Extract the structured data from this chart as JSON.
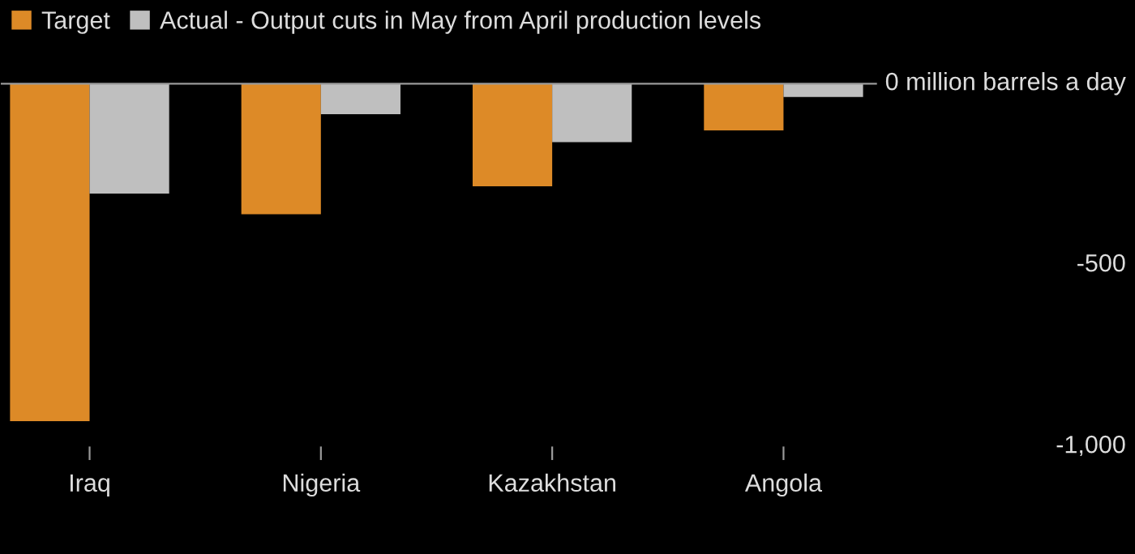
{
  "chart_data": {
    "type": "bar",
    "categories": [
      "Iraq",
      "Nigeria",
      "Kazakhstan",
      "Angola"
    ],
    "series": [
      {
        "name": "Target",
        "color": "#dd8a27",
        "values": [
          -930,
          -360,
          -283,
          -129
        ]
      },
      {
        "name": "Actual - Output cuts in May from April production levels",
        "color": "#bfbfbf",
        "values": [
          -303,
          -84,
          -161,
          -37
        ]
      }
    ],
    "ylim": [
      -1000,
      0
    ],
    "yticks": [
      {
        "value": 0,
        "label": "0 million barrels a day"
      },
      {
        "value": -500,
        "label": "-500"
      },
      {
        "value": -1000,
        "label": "-1,000"
      }
    ],
    "grid": false,
    "legend": "top left"
  }
}
